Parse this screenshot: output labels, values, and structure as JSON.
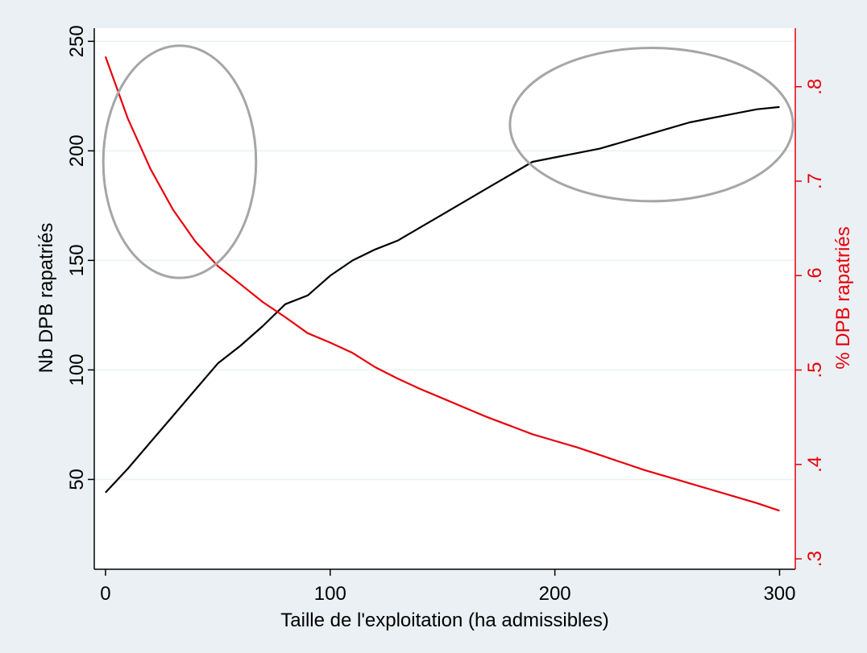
{
  "chart_data": {
    "type": "line",
    "xlabel": "Taille de l'exploitation (ha admissibles)",
    "ylabel_left": "Nb DPB rapatriés",
    "ylabel_right": "% DPB rapatriés",
    "x_ticks": [
      0,
      100,
      200,
      300
    ],
    "y_left_ticks": [
      50,
      100,
      150,
      200,
      250
    ],
    "y_right_ticks": [
      ".3",
      ".4",
      ".5",
      ".6",
      ".7",
      ".8"
    ],
    "y_right_tick_values": [
      0.3,
      0.4,
      0.5,
      0.6,
      0.7,
      0.8
    ],
    "xlim": [
      -5,
      307
    ],
    "ylim_left": [
      9,
      256
    ],
    "ylim_right": [
      0.289,
      0.862
    ],
    "grid": true,
    "colors": {
      "background_outer": "#eaf0f3",
      "plot_area": "#ffffff",
      "gridline": "#eaf0f3",
      "left_series": "#000000",
      "right_series": "#e8000b",
      "right_axis": "#e8000b",
      "ellipse": "#a6a6a6"
    },
    "series": [
      {
        "axis": "left",
        "color": "#000000",
        "x": [
          0,
          10,
          20,
          30,
          40,
          50,
          60,
          70,
          80,
          90,
          100,
          110,
          120,
          130,
          140,
          150,
          160,
          170,
          180,
          190,
          200,
          210,
          220,
          230,
          240,
          250,
          260,
          270,
          280,
          290,
          300
        ],
        "values": [
          44,
          55,
          67,
          79,
          91,
          103,
          111,
          120,
          130,
          134,
          143,
          150,
          155,
          159,
          165,
          171,
          177,
          183,
          189,
          195,
          197,
          199,
          201,
          204,
          207,
          210,
          213,
          215,
          217,
          219,
          220
        ]
      },
      {
        "axis": "right",
        "color": "#e8000b",
        "x": [
          0,
          10,
          20,
          30,
          40,
          50,
          60,
          70,
          80,
          90,
          100,
          110,
          120,
          130,
          140,
          150,
          160,
          170,
          180,
          190,
          200,
          210,
          220,
          230,
          240,
          250,
          260,
          270,
          280,
          290,
          300
        ],
        "values": [
          0.832,
          0.766,
          0.713,
          0.67,
          0.636,
          0.61,
          0.591,
          0.572,
          0.556,
          0.539,
          0.529,
          0.518,
          0.503,
          0.491,
          0.48,
          0.47,
          0.46,
          0.45,
          0.441,
          0.432,
          0.425,
          0.418,
          0.41,
          0.402,
          0.394,
          0.387,
          0.38,
          0.373,
          0.366,
          0.359,
          0.351
        ]
      }
    ],
    "annotations": [
      {
        "shape": "ellipse",
        "center": [
          33,
          195
        ],
        "radius_x": 34,
        "radius_y": 53,
        "axis": "left"
      },
      {
        "shape": "ellipse",
        "center": [
          243,
          212
        ],
        "radius_x": 63,
        "radius_y": 35,
        "axis": "left"
      }
    ]
  }
}
